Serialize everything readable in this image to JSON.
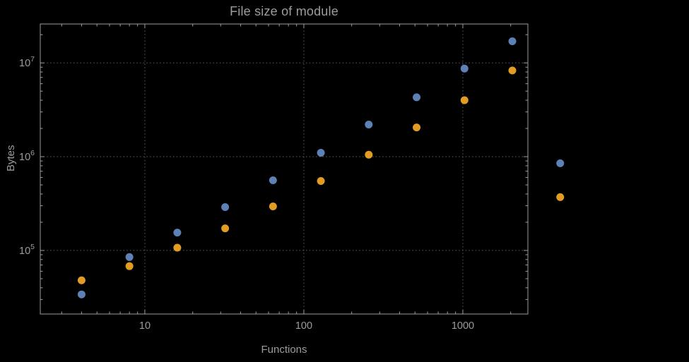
{
  "title": "File size of module",
  "colors": {
    "background": "#000000",
    "text": "#9c9c9c",
    "frame": "#9c9c9c",
    "grid": "#5f5f5f",
    "series_blue": "#5e81b5",
    "series_orange": "#e19c24"
  },
  "chart_data": {
    "type": "scatter",
    "title": "File size of module",
    "xlabel": "Functions",
    "ylabel": "Bytes",
    "x_scale": "log",
    "y_scale": "log",
    "grid": "dotted",
    "legend": "none",
    "x": [
      4,
      8,
      16,
      32,
      64,
      128,
      256,
      512,
      1024,
      2048,
      4096
    ],
    "series": [
      {
        "name": "series-1-blue",
        "color": "#5e81b5",
        "values": [
          34000,
          85000,
          155000,
          290000,
          560000,
          1100000,
          2200000,
          4300000,
          8700000,
          17000000,
          850000
        ]
      },
      {
        "name": "series-2-orange",
        "color": "#e19c24",
        "values": [
          48000,
          68000,
          107000,
          172000,
          295000,
          550000,
          1050000,
          2050000,
          4000000,
          8300000,
          370000
        ]
      }
    ],
    "x_ticks": [
      10,
      100,
      1000
    ],
    "x_tick_labels": [
      "10",
      "100",
      "1000"
    ],
    "y_ticks": [
      100000,
      1000000,
      10000000
    ],
    "y_tick_labels": [
      "10^5",
      "10^6",
      "10^7"
    ],
    "xlim": [
      2.2,
      2565
    ],
    "ylim": [
      21000,
      26000000
    ]
  }
}
